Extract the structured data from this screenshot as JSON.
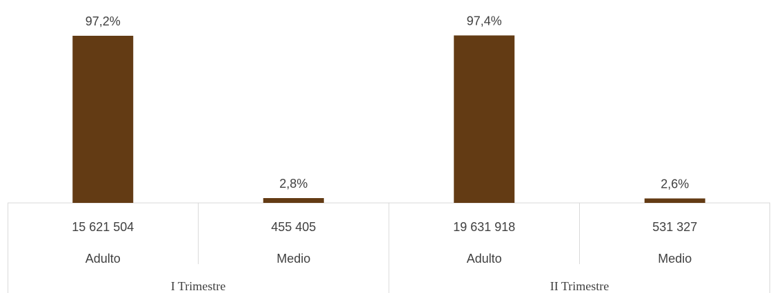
{
  "chart_data": {
    "type": "bar",
    "title": "",
    "xlabel": "",
    "ylabel": "",
    "ylim": [
      0,
      100
    ],
    "grid": false,
    "legend": "none",
    "bar_color": "#633b14",
    "axis_color": "#d9d9d9",
    "text_color": "#404040",
    "groups": [
      {
        "label": "I Trimestre",
        "categories": [
          {
            "count": "15 621 504",
            "name": "Adulto",
            "value": 97.2,
            "label": "97,2%"
          },
          {
            "count": "455 405",
            "name": "Medio",
            "value": 2.8,
            "label": "2,8%"
          }
        ]
      },
      {
        "label": "II Trimestre",
        "categories": [
          {
            "count": "19 631 918",
            "name": "Adulto",
            "value": 97.4,
            "label": "97,4%"
          },
          {
            "count": "531 327",
            "name": "Medio",
            "value": 2.6,
            "label": "2,6%"
          }
        ]
      }
    ]
  }
}
